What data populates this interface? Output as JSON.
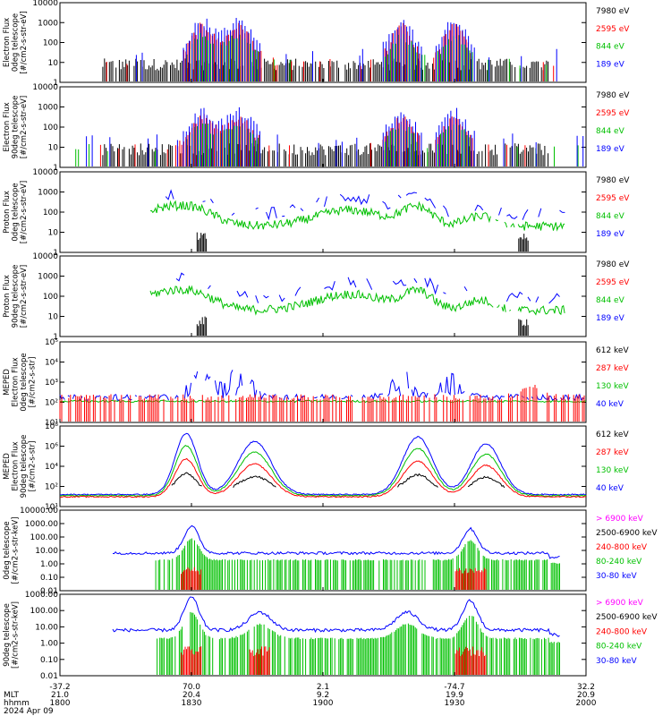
{
  "chart_data": {
    "type": "line",
    "date": "2024 Apr 09",
    "x_range": [
      "1800",
      "2000"
    ],
    "xaxis_labels": {
      "row_labels": [
        "",
        "MLT",
        "hhmm",
        "2024 Apr 09"
      ],
      "ticks": [
        {
          "hhmm": "1800",
          "lat": "-37.2",
          "mlt": "21.0"
        },
        {
          "hhmm": "1830",
          "lat": "70.0",
          "mlt": "20.4"
        },
        {
          "hhmm": "1900",
          "lat": "2.1",
          "mlt": "9.2"
        },
        {
          "hhmm": "1930",
          "lat": "-74.7",
          "mlt": "19.9"
        },
        {
          "hhmm": "2000",
          "lat": "32.2",
          "mlt": "20.9"
        }
      ]
    },
    "panels": [
      {
        "id": "p1",
        "ylabel": [
          "Electron Flux",
          "0deg telescope",
          "[#/cm2-s-str-eV]"
        ],
        "scale": "log",
        "ylim": [
          1,
          10000
        ],
        "ytick_labels": [
          "1",
          "10",
          "100",
          "1000",
          "10000"
        ],
        "legend": [
          {
            "label": "7980 eV",
            "color": "#000000"
          },
          {
            "label": "2595 eV",
            "color": "#ff0000"
          },
          {
            "label": "844 eV",
            "color": "#00c000"
          },
          {
            "label": "189 eV",
            "color": "#0000ff"
          }
        ]
      },
      {
        "id": "p2",
        "ylabel": [
          "Electron Flux",
          "90deg telescope",
          "[#/cm2-s-str-eV]"
        ],
        "scale": "log",
        "ylim": [
          1,
          10000
        ],
        "ytick_labels": [
          "1",
          "10",
          "100",
          "1000",
          "10000"
        ],
        "legend": [
          {
            "label": "7980 eV",
            "color": "#000000"
          },
          {
            "label": "2595 eV",
            "color": "#ff0000"
          },
          {
            "label": "844 eV",
            "color": "#00c000"
          },
          {
            "label": "189 eV",
            "color": "#0000ff"
          }
        ]
      },
      {
        "id": "p3",
        "ylabel": [
          "Proton Flux",
          "0deg telescope",
          "[#/cm2-s-str-eV]"
        ],
        "scale": "log",
        "ylim": [
          1,
          10000
        ],
        "ytick_labels": [
          "1",
          "10",
          "100",
          "1000",
          "10000"
        ],
        "legend": [
          {
            "label": "7980 eV",
            "color": "#000000"
          },
          {
            "label": "2595 eV",
            "color": "#ff0000"
          },
          {
            "label": "844 eV",
            "color": "#00c000"
          },
          {
            "label": "189 eV",
            "color": "#0000ff"
          }
        ]
      },
      {
        "id": "p4",
        "ylabel": [
          "Proton Flux",
          "90deg telescope",
          "[#/cm2-s-str-eV]"
        ],
        "scale": "log",
        "ylim": [
          1,
          10000
        ],
        "ytick_labels": [
          "1",
          "10",
          "100",
          "1000",
          "10000"
        ],
        "legend": [
          {
            "label": "7980 eV",
            "color": "#000000"
          },
          {
            "label": "2595 eV",
            "color": "#ff0000"
          },
          {
            "label": "844 eV",
            "color": "#00c000"
          },
          {
            "label": "189 eV",
            "color": "#0000ff"
          }
        ]
      },
      {
        "id": "p5",
        "ylabel": [
          "MEPED",
          "Electron Flux",
          "0deg telescope",
          "[#/cm2-s-str]"
        ],
        "scale": "log",
        "ylim": [
          10,
          100000
        ],
        "ytick_labels": [
          "10¹",
          "10²",
          "10³",
          "10⁴",
          "10⁵"
        ],
        "legend": [
          {
            "label": "612 keV",
            "color": "#000000"
          },
          {
            "label": "287 keV",
            "color": "#ff0000"
          },
          {
            "label": "130 keV",
            "color": "#00c000"
          },
          {
            "label": "40 keV",
            "color": "#0000ff"
          }
        ]
      },
      {
        "id": "p6",
        "ylabel": [
          "MEPED",
          "Electron Flux",
          "90deg telescope",
          "[#/cm2-s-str]"
        ],
        "scale": "log",
        "ylim": [
          10,
          100000000
        ],
        "ytick_labels": [
          "10¹",
          "10²",
          "10⁴",
          "10⁶",
          "10⁸"
        ],
        "legend": [
          {
            "label": "612 keV",
            "color": "#000000"
          },
          {
            "label": "287 keV",
            "color": "#ff0000"
          },
          {
            "label": "130 keV",
            "color": "#00c000"
          },
          {
            "label": "40 keV",
            "color": "#0000ff"
          }
        ]
      },
      {
        "id": "p7",
        "ylabel": [
          "0deg telescope",
          "[#/cm2-s-str-keV]"
        ],
        "scale": "log",
        "ylim": [
          0.01,
          10000
        ],
        "ytick_labels": [
          "0.01",
          "0.10",
          "1.00",
          "10.00",
          "100.00",
          "1000.00",
          "10000.00"
        ],
        "legend": [
          {
            "label": "> 6900 keV",
            "color": "#ff00ff"
          },
          {
            "label": "2500-6900 keV",
            "color": "#000000"
          },
          {
            "label": "240-800 keV",
            "color": "#ff0000"
          },
          {
            "label": "80-240 keV",
            "color": "#00c000"
          },
          {
            "label": "30-80 keV",
            "color": "#0000ff"
          }
        ]
      },
      {
        "id": "p8",
        "ylabel": [
          "90deg telescope",
          "[#/cm2-s-str-keV]"
        ],
        "scale": "log",
        "ylim": [
          0.01,
          1000
        ],
        "ytick_labels": [
          "0.01",
          "0.10",
          "1.00",
          "10.00",
          "100.00",
          "1000.00"
        ],
        "legend": [
          {
            "label": "> 6900 keV",
            "color": "#ff00ff"
          },
          {
            "label": "2500-6900 keV",
            "color": "#000000"
          },
          {
            "label": "240-800 keV",
            "color": "#ff0000"
          },
          {
            "label": "80-240 keV",
            "color": "#00c000"
          },
          {
            "label": "30-80 keV",
            "color": "#0000ff"
          }
        ]
      }
    ]
  }
}
